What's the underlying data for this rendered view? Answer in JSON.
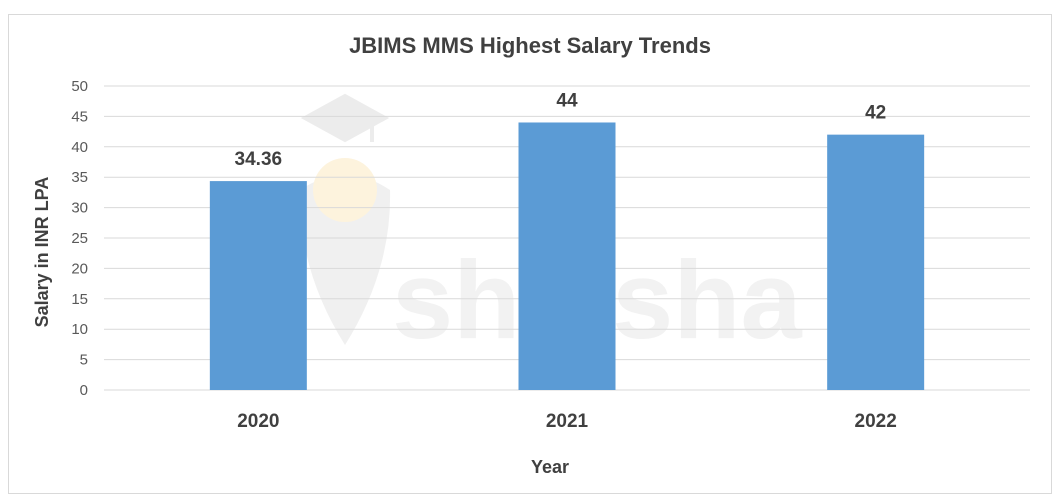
{
  "watermark": "shiksha",
  "chart_data": {
    "type": "bar",
    "title": "JBIMS MMS Highest Salary Trends",
    "xlabel": "Year",
    "ylabel": "Salary in INR LPA",
    "categories": [
      "2020",
      "2021",
      "2022"
    ],
    "values": [
      34.36,
      44,
      42
    ],
    "data_labels": [
      "34.36",
      "44",
      "42"
    ],
    "ylim": [
      0,
      50
    ],
    "yticks": [
      "0",
      "5",
      "10",
      "15",
      "20",
      "25",
      "30",
      "35",
      "40",
      "45",
      "50"
    ],
    "grid": true,
    "legend": "none",
    "bar_color": "#5B9BD5",
    "grid_color": "#d9d9d9"
  }
}
